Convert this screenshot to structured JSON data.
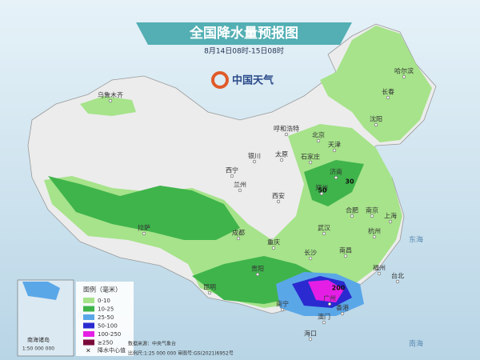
{
  "header": {
    "title": "全国降水量预报图",
    "subtitle": "8月14日08时-15日08时",
    "logo": "中国天气"
  },
  "cities": [
    "哈尔滨",
    "长春",
    "沈阳",
    "乌鲁木齐",
    "呼和浩特",
    "北京",
    "天津",
    "石家庄",
    "太原",
    "银川",
    "济南",
    "西宁",
    "兰州",
    "郑州",
    "西安",
    "合肥",
    "南京",
    "上海",
    "杭州",
    "拉萨",
    "成都",
    "武汉",
    "重庆",
    "长沙",
    "南昌",
    "贵阳",
    "福州",
    "昆明",
    "南宁",
    "广州",
    "香港",
    "澳门",
    "海口",
    "台北"
  ],
  "seas": [
    "东海",
    "南海",
    "南海"
  ],
  "centers": [
    "30",
    "50",
    "200"
  ],
  "legend": {
    "title": "图例（毫米）",
    "items": [
      "0-10",
      "10-25",
      "25-50",
      "50-100",
      "100-250",
      "≥250"
    ],
    "center_label": "降水中心值"
  },
  "inset": {
    "label": "南海诸岛",
    "scale": "1:50 000 000"
  },
  "footer": {
    "source": "数据来源：中央气象台",
    "scale": "比例尺:1:25 000 000   审图号:GS(2021)6952号"
  }
}
